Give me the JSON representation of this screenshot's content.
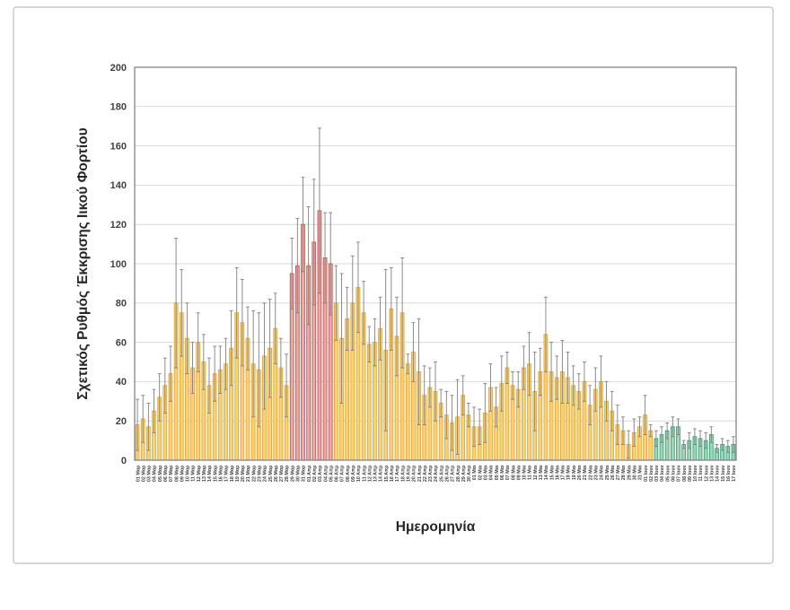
{
  "figure": {
    "background": "#ffffff",
    "frame_border_color": "#bdbdbd"
  },
  "chart_data": {
    "type": "bar",
    "title": "",
    "xlabel": "Ημερομηνία",
    "ylabel": "Σχετικός Ρυθμός Έκκρισης Ιικού Φορτίου",
    "ylim": [
      0,
      200
    ],
    "yticks": [
      0,
      20,
      40,
      60,
      80,
      100,
      120,
      140,
      160,
      180,
      200
    ],
    "grid": true,
    "legend": false,
    "error_bars": "symmetric whiskers with caps; error_top = upper whisker value per bar",
    "colors": {
      "yellow": {
        "fill": "#FBD36E",
        "stroke": "#DFA03C"
      },
      "red": {
        "fill": "#EFA8A6",
        "stroke": "#BE4B47"
      },
      "green": {
        "fill": "#9CD7B8",
        "stroke": "#2F9A68"
      },
      "error": "#7f7f7f",
      "grid": "#d9d9d9",
      "plot_border": "#848484",
      "text": "#3f3f3f"
    },
    "color_spans": [
      {
        "color": "yellow",
        "count": 28
      },
      {
        "color": "red",
        "count": 8
      },
      {
        "color": "yellow",
        "count": 58
      },
      {
        "color": "green",
        "count": 15
      }
    ],
    "categories": [
      "01 Μαρ",
      "02 Μαρ",
      "03 Μαρ",
      "04 Μαρ",
      "05 Μαρ",
      "06 Μαρ",
      "07 Μαρ",
      "08 Μαρ",
      "09 Μαρ",
      "10 Μαρ",
      "11 Μαρ",
      "12 Μαρ",
      "13 Μαρ",
      "14 Μαρ",
      "15 Μαρ",
      "16 Μαρ",
      "17 Μαρ",
      "18 Μαρ",
      "19 Μαρ",
      "20 Μαρ",
      "21 Μαρ",
      "22 Μαρ",
      "23 Μαρ",
      "24 Μαρ",
      "25 Μαρ",
      "26 Μαρ",
      "27 Μαρ",
      "28 Μαρ",
      "29 Μαρ",
      "30 Μαρ",
      "31 Μαρ",
      "01 Απρ",
      "02 Απρ",
      "03 Απρ",
      "04 Απρ",
      "05 Απρ",
      "06 Απρ",
      "07 Απρ",
      "08 Απρ",
      "09 Απρ",
      "10 Απρ",
      "11 Απρ",
      "12 Απρ",
      "13 Απρ",
      "14 Απρ",
      "15 Απρ",
      "16 Απρ",
      "17 Απρ",
      "18 Απρ",
      "19 Απρ",
      "20 Απρ",
      "21 Απρ",
      "22 Απρ",
      "23 Απρ",
      "24 Απρ",
      "25 Απρ",
      "26 Απρ",
      "27 Απρ",
      "28 Απρ",
      "29 Απρ",
      "30 Απρ",
      "01 Μαι",
      "02 Μαι",
      "03 Μαι",
      "04 Μαι",
      "05 Μαι",
      "06 Μαι",
      "07 Μαι",
      "08 Μαι",
      "09 Μαι",
      "10 Μαι",
      "11 Μαι",
      "12 Μαι",
      "13 Μαι",
      "14 Μαι",
      "15 Μαι",
      "16 Μαι",
      "17 Μαι",
      "18 Μαι",
      "19 Μαι",
      "20 Μαι",
      "21 Μαι",
      "22 Μαι",
      "23 Μαι",
      "24 Μαι",
      "25 Μαι",
      "26 Μαι",
      "27 Μαι",
      "28 Μαι",
      "29 Μαι",
      "30 Μαι",
      "31 Μαι",
      "01 Ιουν",
      "02 Ιουν",
      "03 Ιουν",
      "04 Ιουν",
      "05 Ιουν",
      "06 Ιουν",
      "07 Ιουν",
      "08 Ιουν",
      "09 Ιουν",
      "10 Ιουν",
      "11 Ιουν",
      "12 Ιουν",
      "13 Ιουν",
      "14 Ιουν",
      "15 Ιουν",
      "16 Ιουν",
      "17 Ιουν"
    ],
    "values": [
      18,
      21,
      17,
      25,
      32,
      38,
      44,
      80,
      75,
      62,
      47,
      60,
      50,
      38,
      44,
      46,
      49,
      57,
      75,
      70,
      62,
      49,
      46,
      53,
      57,
      67,
      47,
      38,
      95,
      99,
      120,
      99,
      111,
      127,
      103,
      100,
      80,
      62,
      72,
      80,
      88,
      75,
      59,
      60,
      67,
      56,
      77,
      63,
      75,
      49,
      55,
      45,
      33,
      37,
      35,
      29,
      23,
      19,
      22,
      33,
      23,
      17,
      17,
      24,
      37,
      27,
      39,
      47,
      38,
      36,
      47,
      49,
      35,
      45,
      64,
      45,
      42,
      45,
      42,
      38,
      35,
      40,
      28,
      36,
      40,
      30,
      25,
      18,
      15,
      8,
      14,
      17,
      23,
      15,
      11,
      13,
      15,
      17,
      17,
      8,
      10,
      12,
      11,
      10,
      13,
      6,
      8,
      7,
      8
    ],
    "error_top": [
      31,
      33,
      29,
      36,
      44,
      52,
      58,
      113,
      97,
      80,
      60,
      75,
      64,
      52,
      58,
      58,
      62,
      76,
      98,
      92,
      78,
      76,
      75,
      80,
      82,
      85,
      62,
      54,
      113,
      123,
      144,
      129,
      143,
      169,
      126,
      126,
      99,
      95,
      88,
      104,
      111,
      91,
      68,
      72,
      83,
      97,
      98,
      83,
      103,
      54,
      70,
      72,
      48,
      47,
      50,
      36,
      35,
      33,
      41,
      43,
      29,
      27,
      26,
      39,
      49,
      37,
      53,
      55,
      45,
      45,
      58,
      65,
      55,
      57,
      83,
      60,
      53,
      61,
      55,
      48,
      44,
      50,
      38,
      47,
      53,
      40,
      35,
      28,
      22,
      15,
      21,
      22,
      33,
      18,
      15,
      17,
      19,
      22,
      21,
      10,
      14,
      16,
      15,
      14,
      17,
      8,
      11,
      10,
      12
    ]
  }
}
